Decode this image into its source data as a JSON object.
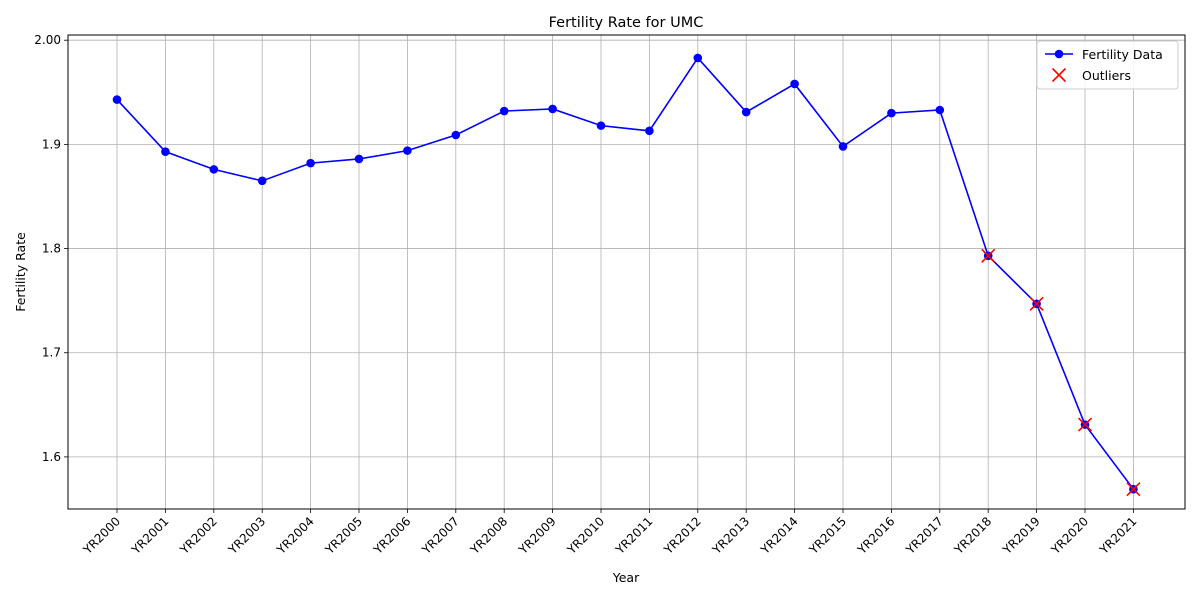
{
  "chart_data": {
    "type": "line",
    "title": "Fertility Rate for UMC",
    "xlabel": "Year",
    "ylabel": "Fertility Rate",
    "categories": [
      "YR2000",
      "YR2001",
      "YR2002",
      "YR2003",
      "YR2004",
      "YR2005",
      "YR2006",
      "YR2007",
      "YR2008",
      "YR2009",
      "YR2010",
      "YR2011",
      "YR2012",
      "YR2013",
      "YR2014",
      "YR2015",
      "YR2016",
      "YR2017",
      "YR2018",
      "YR2019",
      "YR2020",
      "YR2021"
    ],
    "ylim": [
      1.55,
      2.005
    ],
    "yticks": [
      1.6,
      1.7,
      1.8,
      1.9,
      2.0
    ],
    "ytick_labels": [
      "1.6",
      "1.7",
      "1.8",
      "1.9",
      "2.00"
    ],
    "grid": true,
    "legend_position": "top-right",
    "series": [
      {
        "name": "Fertility Data",
        "color": "#0000ff",
        "marker": "circle",
        "values": [
          1.943,
          1.893,
          1.876,
          1.865,
          1.882,
          1.886,
          1.894,
          1.909,
          1.932,
          1.934,
          1.918,
          1.913,
          1.983,
          1.931,
          1.958,
          1.898,
          1.93,
          1.933,
          1.793,
          1.747,
          1.631,
          1.569
        ]
      }
    ],
    "outliers": {
      "name": "Outliers",
      "color": "#ff0000",
      "marker": "x",
      "categories": [
        "YR2018",
        "YR2019",
        "YR2020",
        "YR2021"
      ],
      "values": [
        1.793,
        1.747,
        1.631,
        1.569
      ]
    }
  }
}
